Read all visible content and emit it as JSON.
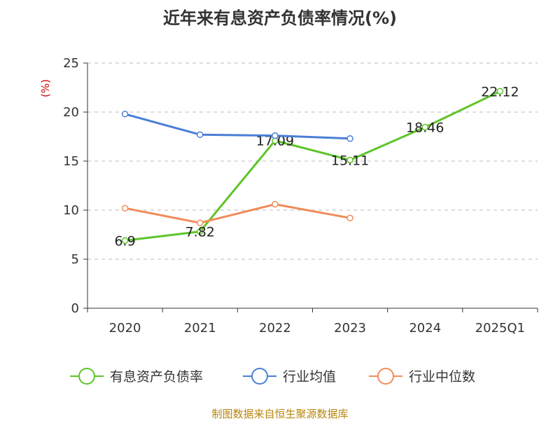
{
  "title": "近年来有息资产负债率情况(%)",
  "source": "制图数据来自恒生聚源数据库",
  "chart_data": {
    "type": "line",
    "ylabel": "(%)",
    "ylim": [
      0,
      25
    ],
    "yticks": [
      0,
      5,
      10,
      15,
      20,
      25
    ],
    "categories": [
      "2020",
      "2021",
      "2022",
      "2023",
      "2024",
      "2025Q1"
    ],
    "grid": true,
    "legend_position": "bottom",
    "series": [
      {
        "name": "有息资产负债率",
        "color": "#5ec42a",
        "values": [
          6.9,
          7.82,
          17.09,
          15.11,
          18.46,
          22.12
        ],
        "labels": [
          "6.9",
          "7.82",
          "17.09",
          "15.11",
          "18.46",
          "22.12"
        ]
      },
      {
        "name": "行业均值",
        "color": "#4a7fd6",
        "values": [
          19.8,
          17.7,
          17.6,
          17.3,
          null,
          null
        ]
      },
      {
        "name": "行业中位数",
        "color": "#f08c5a",
        "values": [
          10.2,
          8.7,
          10.6,
          9.2,
          null,
          null
        ]
      }
    ]
  }
}
